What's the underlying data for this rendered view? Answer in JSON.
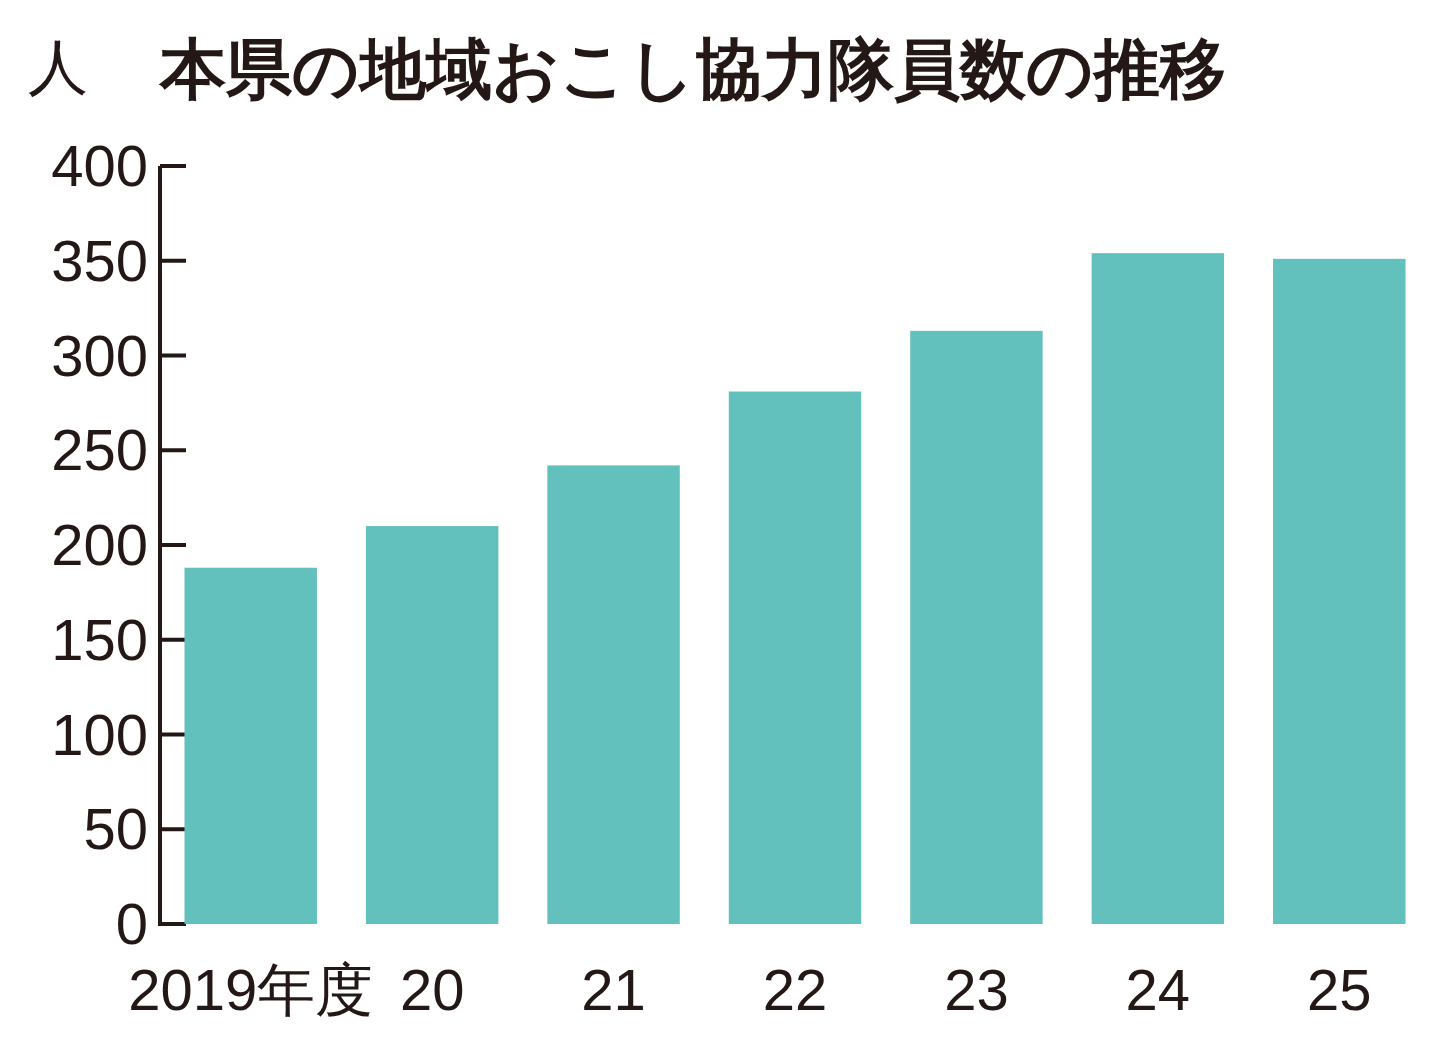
{
  "chart_data": {
    "type": "bar",
    "title": "本県の地域おこし協力隊員数の推移",
    "ylabel": "人",
    "categories": [
      "2019年度",
      "20",
      "21",
      "22",
      "23",
      "24",
      "25"
    ],
    "values": [
      188,
      210,
      242,
      281,
      313,
      354,
      351
    ],
    "color": "#62c0bd",
    "ylim": [
      0,
      400
    ],
    "yticks": [
      0,
      50,
      100,
      150,
      200,
      250,
      300,
      350,
      400
    ]
  }
}
